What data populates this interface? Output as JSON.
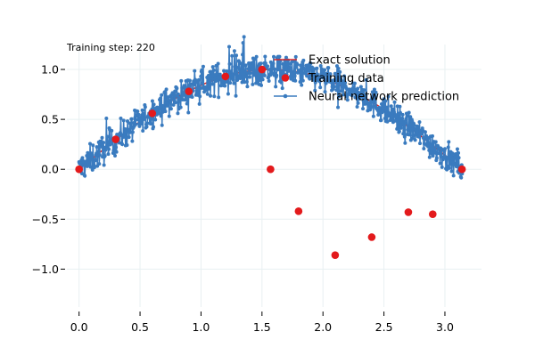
{
  "annotation": "Training step: 220",
  "legend": {
    "items": [
      {
        "label": "Exact solution",
        "color": "#d62728",
        "marker": "line"
      },
      {
        "label": "Training data",
        "color": "#e31a1c",
        "marker": "dot"
      },
      {
        "label": "Neural network prediction",
        "color": "#3a7bbf",
        "marker": "line-dot"
      }
    ]
  },
  "chart_data": {
    "type": "line",
    "title": "",
    "xlabel": "",
    "ylabel": "",
    "xlim": [
      -0.1,
      3.3
    ],
    "ylim": [
      -1.38,
      1.25
    ],
    "xticks": [
      0.0,
      0.5,
      1.0,
      1.5,
      2.0,
      2.5,
      3.0
    ],
    "xtick_labels": [
      "0.0",
      "0.5",
      "1.0",
      "1.5",
      "2.0",
      "2.5",
      "3.0"
    ],
    "yticks": [
      -1.0,
      -0.5,
      0.0,
      0.5,
      1.0
    ],
    "ytick_labels": [
      "−1.0",
      "−0.5",
      "0.0",
      "0.5",
      "1.0"
    ],
    "grid": true,
    "legend_position": "top-right",
    "colors": {
      "exact": "#d62728",
      "training": "#e31a1c",
      "prediction": "#3a7bbf",
      "grid": "#e8f0f2"
    },
    "series": [
      {
        "name": "Exact solution",
        "kind": "line",
        "function": "sin(x)",
        "x_range": [
          0,
          3.14159
        ]
      },
      {
        "name": "Training data",
        "kind": "scatter",
        "x": [
          0.0,
          0.3,
          0.6,
          0.9,
          1.2,
          1.5,
          1.57,
          1.8,
          2.1,
          2.4,
          2.7,
          2.9,
          3.14
        ],
        "y": [
          0.0,
          0.3,
          0.56,
          0.78,
          0.93,
          1.0,
          0.0,
          -0.42,
          -0.86,
          -0.68,
          -0.43,
          -0.45,
          0.0
        ]
      },
      {
        "name": "Neural network prediction",
        "kind": "line-markers",
        "n_points": 800,
        "x_range": [
          0.0,
          3.14159
        ],
        "base": "sin(x)",
        "noise_amplitude": 0.12
      }
    ]
  }
}
